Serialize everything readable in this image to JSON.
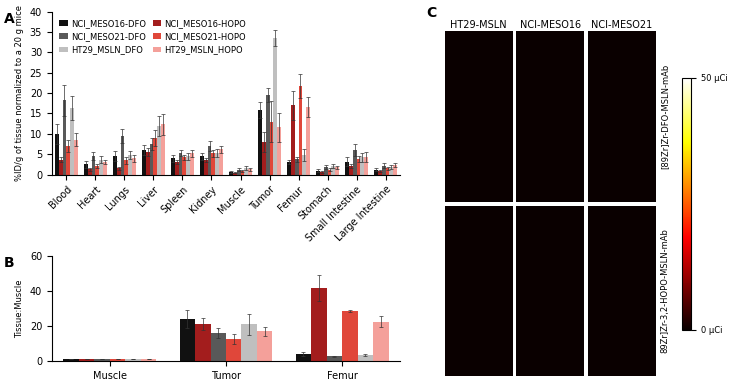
{
  "chart_data": [
    {
      "type": "bar",
      "title": "A",
      "ylabel": "%ID/g of tissue normalized to a 20 g mice",
      "categories": [
        "Blood",
        "Heart",
        "Lungs",
        "Liver",
        "Spleen",
        "Kidney",
        "Muscle",
        "Tumor",
        "Femur",
        "Stomach",
        "Small Intestine",
        "Large Intestine"
      ],
      "ylim": [
        0,
        40
      ],
      "yticks": [
        0,
        5,
        10,
        15,
        20,
        25,
        30,
        35,
        40
      ],
      "legend": "upper left",
      "grid": false,
      "series": [
        {
          "name": "NCI_MESO16-DFO",
          "color": "#111111",
          "values": [
            10,
            2.5,
            4.5,
            6,
            4,
            4.5,
            0.7,
            15.8,
            3,
            1,
            3.2,
            1.2
          ],
          "errors": [
            2.5,
            0.8,
            1.2,
            1.2,
            0.8,
            0.8,
            0.3,
            2,
            0.5,
            0.3,
            1,
            0.4
          ]
        },
        {
          "name": "NCI_MESO16-HOPO",
          "color": "#a31d1d",
          "values": [
            3.7,
            1.3,
            1.5,
            5.5,
            3.2,
            3.5,
            0.5,
            8,
            17,
            0.6,
            2.2,
            0.9
          ],
          "errors": [
            0.5,
            0.3,
            0.3,
            1,
            0.5,
            0.5,
            0.2,
            2.5,
            3.5,
            0.2,
            0.5,
            0.3
          ]
        },
        {
          "name": "NCI_MESO21-DFO",
          "color": "#595959",
          "values": [
            18.2,
            4.5,
            9.5,
            7.5,
            5.3,
            7,
            1.2,
            19.5,
            3.8,
            1.8,
            6,
            2.2
          ],
          "errors": [
            3.8,
            1,
            1.8,
            1.5,
            0.8,
            1.2,
            0.3,
            1.8,
            0.6,
            0.5,
            1.5,
            0.6
          ]
        },
        {
          "name": "NCI_MESO21-HOPO",
          "color": "#e0473a",
          "values": [
            7,
            2,
            3.5,
            9,
            4.2,
            5.2,
            0.9,
            13,
            21.8,
            1.2,
            3.8,
            1.5
          ],
          "errors": [
            1.5,
            0.5,
            0.8,
            2,
            0.6,
            0.8,
            0.3,
            5,
            3,
            0.4,
            0.8,
            0.4
          ]
        },
        {
          "name": "HT29_MSLN_DFO",
          "color": "#bfbfbf",
          "values": [
            16.3,
            3.7,
            4.8,
            12,
            4.5,
            5.3,
            1.6,
            33.5,
            4.8,
            2,
            4.2,
            1.8
          ],
          "errors": [
            3,
            0.8,
            1,
            2.5,
            0.8,
            1,
            0.4,
            2,
            1.5,
            0.5,
            1.2,
            0.5
          ]
        },
        {
          "name": "HT29_MSLN_HOPO",
          "color": "#f4a09a",
          "values": [
            8.6,
            3.1,
            4,
            12.3,
            5.2,
            6.2,
            1.3,
            11.6,
            16.6,
            1.8,
            4.3,
            2.4
          ],
          "errors": [
            1.5,
            0.6,
            0.8,
            2.5,
            0.8,
            0.8,
            0.3,
            3.5,
            2.5,
            0.4,
            1.3,
            0.5
          ]
        }
      ]
    },
    {
      "type": "bar",
      "title": "B",
      "ylabel": "Tissue:Muscle",
      "categories": [
        "Muscle",
        "Tumor",
        "Femur"
      ],
      "ylim": [
        0,
        60
      ],
      "yticks": [
        0,
        20,
        40,
        60
      ],
      "grid": false,
      "series": [
        {
          "name": "NCI_MESO16-DFO",
          "color": "#111111",
          "values": [
            1,
            24,
            4
          ],
          "errors": [
            0,
            5,
            1
          ]
        },
        {
          "name": "NCI_MESO16-HOPO",
          "color": "#a31d1d",
          "values": [
            1,
            21,
            41.5
          ],
          "errors": [
            0,
            3.5,
            7.5
          ]
        },
        {
          "name": "NCI_MESO21-DFO",
          "color": "#595959",
          "values": [
            1,
            16,
            2.5
          ],
          "errors": [
            0,
            3,
            0.3
          ]
        },
        {
          "name": "NCI_MESO21-HOPO",
          "color": "#e0473a",
          "values": [
            1,
            12.5,
            28.5
          ],
          "errors": [
            0,
            3,
            0.5
          ]
        },
        {
          "name": "HT29_MSLN_DFO",
          "color": "#bfbfbf",
          "values": [
            1,
            21,
            3.5
          ],
          "errors": [
            0,
            6,
            0.5
          ]
        },
        {
          "name": "HT29_MSLN_HOPO",
          "color": "#f4a09a",
          "values": [
            1,
            17,
            22.5
          ],
          "errors": [
            0,
            2.5,
            3
          ]
        }
      ]
    },
    {
      "type": "image",
      "title": "C",
      "columns": [
        "HT29-MSLN",
        "NCI-MESO16",
        "NCI-MESO21"
      ],
      "rows": [
        "[89Zr]Zr-DFO-MSLN-mAb",
        "89Zr]Zr-3,2-HOPO-MSLN-mAb"
      ],
      "colorbar_range": [
        0,
        50
      ],
      "colorbar_ticks": [
        {
          "value": 0,
          "label": "0 µCi"
        },
        {
          "value": 50,
          "label": "50 µCi"
        }
      ]
    }
  ]
}
